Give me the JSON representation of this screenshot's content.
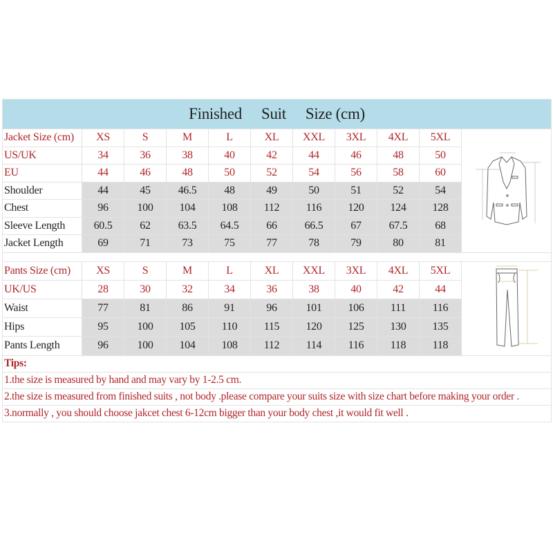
{
  "title_words": [
    "Finished",
    "Suit",
    "Size (cm)"
  ],
  "jacket": {
    "header": {
      "label": "Jacket Size (cm)",
      "values": [
        "XS",
        "S",
        "M",
        "L",
        "XL",
        "XXL",
        "3XL",
        "4XL",
        "5XL"
      ]
    },
    "size_rows": [
      {
        "label": "US/UK",
        "values": [
          "34",
          "36",
          "38",
          "40",
          "42",
          "44",
          "46",
          "48",
          "50"
        ]
      },
      {
        "label": "EU",
        "values": [
          "44",
          "46",
          "48",
          "50",
          "52",
          "54",
          "56",
          "58",
          "60"
        ]
      }
    ],
    "measure_rows": [
      {
        "label": "Shoulder",
        "values": [
          "44",
          "45",
          "46.5",
          "48",
          "49",
          "50",
          "51",
          "52",
          "54"
        ]
      },
      {
        "label": "Chest",
        "values": [
          "96",
          "100",
          "104",
          "108",
          "112",
          "116",
          "120",
          "124",
          "128"
        ]
      },
      {
        "label": "Sleeve Length",
        "values": [
          "60.5",
          "62",
          "63.5",
          "64.5",
          "66",
          "66.5",
          "67",
          "67.5",
          "68"
        ]
      },
      {
        "label": "Jacket Length",
        "values": [
          "69",
          "71",
          "73",
          "75",
          "77",
          "78",
          "79",
          "80",
          "81"
        ]
      }
    ]
  },
  "pants": {
    "header": {
      "label": "Pants Size (cm)",
      "values": [
        "XS",
        "S",
        "M",
        "L",
        "XL",
        "XXL",
        "3XL",
        "4XL",
        "5XL"
      ]
    },
    "size_rows": [
      {
        "label": "UK/US",
        "values": [
          "28",
          "30",
          "32",
          "34",
          "36",
          "38",
          "40",
          "42",
          "44"
        ]
      }
    ],
    "measure_rows": [
      {
        "label": "Waist",
        "values": [
          "77",
          "81",
          "86",
          "91",
          "96",
          "101",
          "106",
          "111",
          "116"
        ]
      },
      {
        "label": "Hips",
        "values": [
          "95",
          "100",
          "105",
          "110",
          "115",
          "120",
          "125",
          "130",
          "135"
        ]
      },
      {
        "label": "Pants Length",
        "values": [
          "96",
          "100",
          "104",
          "108",
          "112",
          "114",
          "116",
          "118",
          "118"
        ]
      }
    ]
  },
  "tips": {
    "heading": "Tips:",
    "lines": [
      "1.the size is measured by hand and may vary by 1-2.5 cm.",
      "2.the size is measured from finished suits , not body .please compare your suits size with size chart before making your order .",
      "3.normally , you should choose jakcet chest 6-12cm bigger than your body chest ,it would fit well ."
    ]
  },
  "colors": {
    "header_bg": "#b5dde9",
    "accent_red": "#b0252b",
    "measure_bg": "#dcdcdc"
  },
  "icons": [
    "jacket-diagram-icon",
    "pants-diagram-icon"
  ]
}
